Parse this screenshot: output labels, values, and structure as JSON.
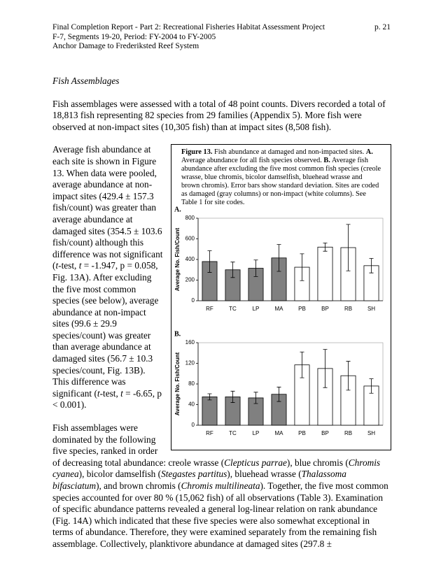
{
  "header": {
    "lines": [
      "Final Completion Report - Part 2: Recreational Fisheries Habitat Assessment Project",
      "F-7, Segments 19-20, Period: FY-2004 to FY-2005",
      "Anchor Damage to Frederiksted Reef System"
    ],
    "page": "p. 21"
  },
  "section_title": "Fish Assemblages",
  "paragraphs": [
    [
      "Fish assemblages were assessed with a total of 48 point counts.  Divers recorded a total of 18,813 fish representing 82 species from 29 families (Appendix 5).  More fish were observed at non-impact sites (10,305 fish) than at impact sites (8,508 fish)."
    ],
    [
      "Average fish abundance at each site is shown in Figure 13.  When data were pooled, average abundance at non-impact sites (429.4 ± 157.3 fish/count) was greater than average abundance at damaged sites (354.5 ± 103.6 fish/count) although this difference was not significant (",
      {
        "text": "t",
        "style": "italic"
      },
      "-test, ",
      {
        "text": "t",
        "style": "italic"
      },
      " = -1.947, p = 0.058, Fig. 13A).  After excluding the five most common species (see below), average abundance at non-impact sites (99.6 ± 29.9 species/count) was greater than average abundance at damaged sites (56.7 ± 10.3 species/count, Fig. 13B).  This difference was significant (",
      {
        "text": "t",
        "style": "italic"
      },
      "-test, ",
      {
        "text": "t",
        "style": "italic"
      },
      " = -6.65, p < 0.001)."
    ],
    [
      "Fish assemblages were dominated by the following five species, ranked in order of decreasing total abundance: creole wrasse (",
      {
        "text": "Clepticus parrae",
        "style": "italic"
      },
      "), blue chromis (",
      {
        "text": "Chromis cyanea",
        "style": "italic"
      },
      "), bicolor damselfish (",
      {
        "text": "Stegastes partitus",
        "style": "italic"
      },
      "), bluehead wrasse (",
      {
        "text": "Thalassoma bifasciatum",
        "style": "italic"
      },
      "), and brown chromis (",
      {
        "text": "Chromis multilineata",
        "style": "italic"
      },
      ").  Together, the five most common species accounted for over 80 % (15,062 fish) of all observations (Table 3).  Examination of specific abundance patterns revealed a general log-linear relation on rank abundance (Fig. 14A) which indicated that these five species were also somewhat exceptional in terms of abundance.  Therefore, they were examined separately from the remaining fish assemblage.  Collectively, planktivore abundance at damaged sites (297.8 ±"
    ]
  ],
  "figure_caption": [
    {
      "text": "Figure 13.",
      "style": "bold"
    },
    "  Fish abundance at damaged and non-impacted sites.  ",
    {
      "text": "A.",
      "style": "bold"
    },
    "  Average abundance for all fish species observed.  ",
    {
      "text": "B.",
      "style": "bold"
    },
    "  Average fish abundance after excluding the five most common fish species (creole wrasse, blue chromis, bicolor damselfish, bluehead wrasse and brown chromis). Error bars show standard deviation.  Sites are coded as damaged (gray columns) or non-impact (white columns).  See Table 1 for site codes."
  ],
  "chart_data": [
    {
      "type": "bar",
      "title": "A.",
      "y_label": "Average No. Fish/Count",
      "categories": [
        "RF",
        "TC",
        "LP",
        "MA",
        "PB",
        "BP",
        "RB",
        "SH"
      ],
      "values": [
        380,
        300,
        315,
        415,
        325,
        520,
        515,
        340
      ],
      "errors": [
        105,
        75,
        80,
        130,
        130,
        40,
        225,
        70
      ],
      "colors": [
        "#808080",
        "#808080",
        "#808080",
        "#808080",
        "#ffffff",
        "#ffffff",
        "#ffffff",
        "#ffffff"
      ],
      "ylim": [
        0,
        800
      ],
      "yticks": [
        0,
        200,
        400,
        600,
        800
      ]
    },
    {
      "type": "bar",
      "title": "B.",
      "y_label": "Average No. Fish/Count",
      "categories": [
        "RF",
        "TC",
        "LP",
        "MA",
        "PB",
        "BP",
        "RB",
        "SH"
      ],
      "values": [
        55,
        55,
        53,
        60,
        117,
        110,
        96,
        76
      ],
      "errors": [
        6,
        11,
        11,
        14,
        25,
        37,
        28,
        14
      ],
      "colors": [
        "#808080",
        "#808080",
        "#808080",
        "#808080",
        "#ffffff",
        "#ffffff",
        "#ffffff",
        "#ffffff"
      ],
      "ylim": [
        0,
        160
      ],
      "yticks": [
        0,
        40,
        80,
        120,
        160
      ]
    }
  ]
}
